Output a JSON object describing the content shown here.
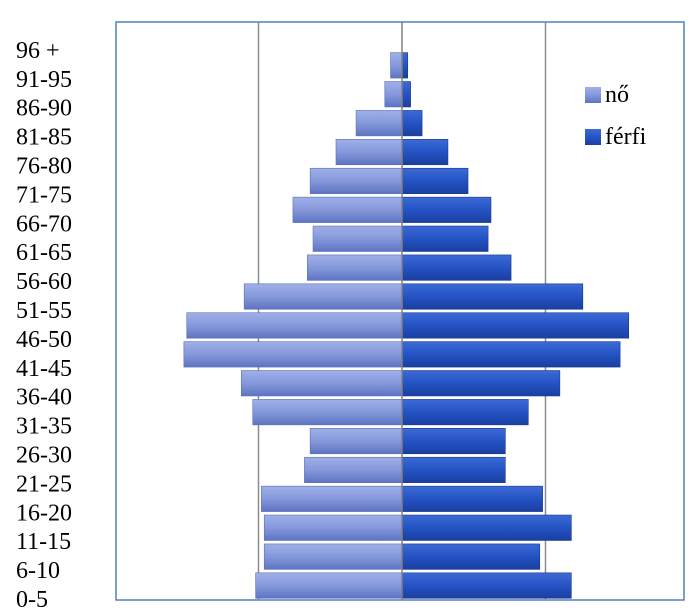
{
  "chart_data": {
    "type": "bar",
    "orientation": "horizontal",
    "subtype": "population-pyramid",
    "title": "",
    "xlabel": "",
    "ylabel": "",
    "xlim": [
      -1,
      1
    ],
    "grid": "vertical",
    "legend_position": "right",
    "categories": [
      "0-5",
      "6-10",
      "11-15",
      "16-20",
      "21-25",
      "26-30",
      "31-35",
      "36-40",
      "41-45",
      "46-50",
      "51-55",
      "56-60",
      "61-65",
      "66-70",
      "71-75",
      "76-80",
      "81-85",
      "86-90",
      "91-95",
      "96 +"
    ],
    "series": [
      {
        "name": "nő",
        "side": "left",
        "color": "#7d92d6",
        "values": [
          0.51,
          0.48,
          0.48,
          0.49,
          0.34,
          0.32,
          0.52,
          0.56,
          0.76,
          0.75,
          0.55,
          0.33,
          0.31,
          0.38,
          0.32,
          0.23,
          0.16,
          0.06,
          0.04,
          0.0
        ]
      },
      {
        "name": "férfi",
        "side": "right",
        "color": "#2050c0",
        "values": [
          0.59,
          0.48,
          0.59,
          0.49,
          0.36,
          0.36,
          0.44,
          0.55,
          0.76,
          0.79,
          0.63,
          0.38,
          0.3,
          0.31,
          0.23,
          0.16,
          0.07,
          0.03,
          0.02,
          0.0
        ]
      }
    ]
  }
}
